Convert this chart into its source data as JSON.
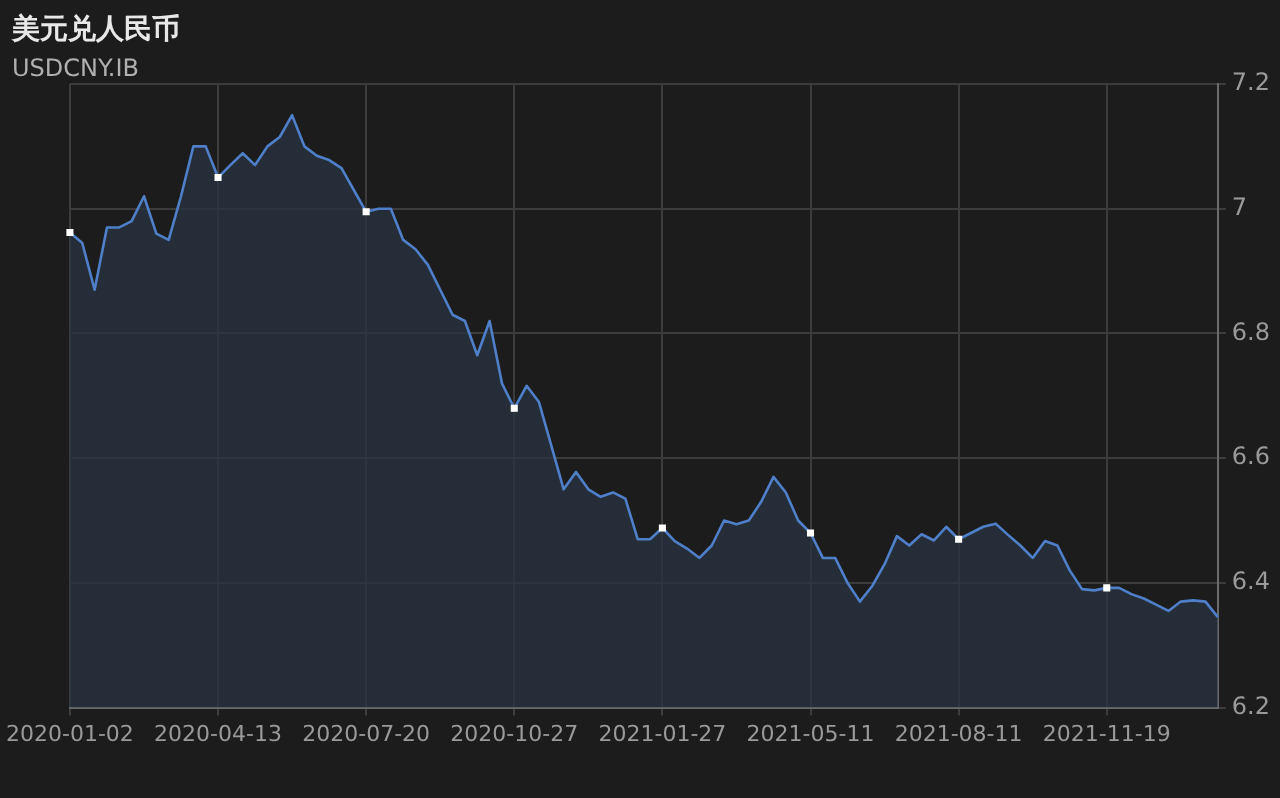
{
  "chart_data": {
    "type": "area",
    "title": "美元兑人民币",
    "subtitle": "USDCNY.IB",
    "categories": [
      "2020-01-02",
      null,
      null,
      null,
      null,
      null,
      null,
      null,
      null,
      null,
      null,
      null,
      "2020-04-13",
      null,
      null,
      null,
      null,
      null,
      null,
      null,
      null,
      null,
      null,
      null,
      "2020-07-20",
      null,
      null,
      null,
      null,
      null,
      null,
      null,
      null,
      null,
      null,
      null,
      "2020-10-27",
      null,
      null,
      null,
      null,
      null,
      null,
      null,
      null,
      null,
      null,
      null,
      "2021-01-27",
      null,
      null,
      null,
      null,
      null,
      null,
      null,
      null,
      null,
      null,
      null,
      "2021-05-11",
      null,
      null,
      null,
      null,
      null,
      null,
      null,
      null,
      null,
      null,
      null,
      "2021-08-11",
      null,
      null,
      null,
      null,
      null,
      null,
      null,
      null,
      null,
      null,
      null,
      "2021-11-19",
      null,
      null,
      null,
      null,
      null,
      null,
      null,
      null,
      null
    ],
    "series": [
      {
        "color": "#4f7fc9",
        "values": [
          6.962,
          6.945,
          6.87,
          6.97,
          6.97,
          6.98,
          7.02,
          6.96,
          6.95,
          7.02,
          7.1,
          7.1,
          7.05,
          7.07,
          7.089,
          7.07,
          7.1,
          7.115,
          7.15,
          7.1,
          7.085,
          7.078,
          7.065,
          7.03,
          6.995,
          7.0,
          7.0,
          6.95,
          6.935,
          6.91,
          6.87,
          6.83,
          6.82,
          6.765,
          6.82,
          6.72,
          6.68,
          6.716,
          6.69,
          6.62,
          6.55,
          6.578,
          6.55,
          6.538,
          6.545,
          6.535,
          6.47,
          6.47,
          6.488,
          6.467,
          6.455,
          6.44,
          6.46,
          6.5,
          6.494,
          6.5,
          6.53,
          6.57,
          6.545,
          6.5,
          6.48,
          6.44,
          6.44,
          6.4,
          6.37,
          6.395,
          6.43,
          6.475,
          6.46,
          6.478,
          6.468,
          6.49,
          6.47,
          6.48,
          6.49,
          6.495,
          6.477,
          6.46,
          6.44,
          6.467,
          6.46,
          6.42,
          6.39,
          6.388,
          6.392,
          6.392,
          6.382,
          6.375,
          6.365,
          6.355,
          6.37,
          6.372,
          6.37,
          6.345
        ]
      },
      {
        "type": "scatter",
        "color": "#ffffff",
        "marker": "square",
        "values": [
          6.962,
          null,
          null,
          null,
          null,
          null,
          null,
          null,
          null,
          null,
          null,
          null,
          7.05,
          null,
          null,
          null,
          null,
          null,
          null,
          null,
          null,
          null,
          null,
          null,
          6.995,
          null,
          null,
          null,
          null,
          null,
          null,
          null,
          null,
          null,
          null,
          null,
          6.68,
          null,
          null,
          null,
          null,
          null,
          null,
          null,
          null,
          null,
          null,
          null,
          6.488,
          null,
          null,
          null,
          null,
          null,
          null,
          null,
          null,
          null,
          null,
          null,
          6.48,
          null,
          null,
          null,
          null,
          null,
          null,
          null,
          null,
          null,
          null,
          null,
          6.47,
          null,
          null,
          null,
          null,
          null,
          null,
          null,
          null,
          null,
          null,
          null,
          6.392,
          null,
          null,
          null,
          null,
          null,
          null,
          null,
          null,
          null
        ]
      }
    ],
    "ylim": [
      6.2,
      7.2
    ],
    "yticks": [
      6.2,
      6.4,
      6.6,
      6.8,
      7,
      7.2
    ],
    "grid": true,
    "legend": false
  }
}
